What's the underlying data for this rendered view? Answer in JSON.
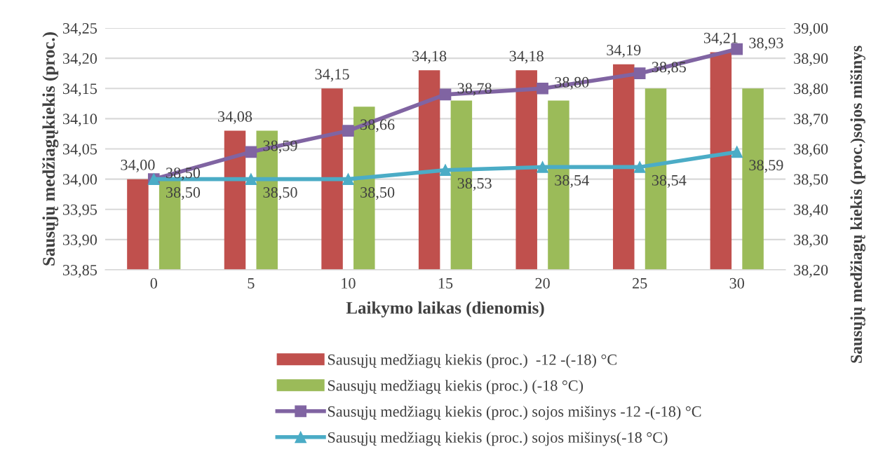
{
  "chart_data": {
    "type": "bar",
    "xlabel": "Laikymo laikas (dienomis)",
    "ylabel": "Sausųjų medžiagųkiekis (proc.)",
    "y2label": "Sausųjų medžiagų kiekis (proc.)sojos mišinys",
    "categories": [
      "0",
      "5",
      "10",
      "15",
      "20",
      "25",
      "30"
    ],
    "series": [
      {
        "name": "Sausųjų medžiagų kiekis (proc.)  -12 -(-18) °C",
        "color": "#c0504d",
        "values": [
          34.0,
          34.08,
          34.15,
          34.18,
          34.18,
          34.19,
          34.21
        ],
        "value_labels": [
          "34,00",
          "34,08",
          "34,15",
          "34,18",
          "34,18",
          "34,19",
          "34,21"
        ]
      },
      {
        "name": "Sausųjų medžiagų kiekis (proc.) (-18 °C)",
        "color": "#9bbb59",
        "values": [
          34.0,
          34.08,
          34.12,
          34.13,
          34.13,
          34.15,
          34.15
        ]
      },
      {
        "name": "Sausųjų medžiagų kiekis (proc.) sojos mišinys -12 -(-18) °C",
        "type": "line",
        "axis": "y2",
        "marker": "square",
        "color": "#8064a2",
        "values": [
          38.5,
          38.59,
          38.66,
          38.78,
          38.8,
          38.85,
          38.93
        ],
        "value_labels": [
          "38,50",
          "38,59",
          "38,66",
          "38,78",
          "38,80",
          "38,85",
          "38,93"
        ]
      },
      {
        "name": "Sausųjų medžiagų kiekis (proc.) sojos mišinys(-18 °C)",
        "type": "line",
        "axis": "y2",
        "marker": "triangle",
        "color": "#4bacc6",
        "values": [
          38.5,
          38.5,
          38.5,
          38.53,
          38.54,
          38.54,
          38.59
        ],
        "value_labels": [
          "38,50",
          "38,50",
          "38,50",
          "38,53",
          "38,54",
          "38,54",
          "38,59"
        ]
      }
    ],
    "ylim": [
      33.85,
      34.25
    ],
    "yticks": [
      {
        "value": 33.85,
        "label": "33,85"
      },
      {
        "value": 33.9,
        "label": "33,90"
      },
      {
        "value": 33.95,
        "label": "33,95"
      },
      {
        "value": 34.0,
        "label": "34,00"
      },
      {
        "value": 34.05,
        "label": "34,05"
      },
      {
        "value": 34.1,
        "label": "34,10"
      },
      {
        "value": 34.15,
        "label": "34,15"
      },
      {
        "value": 34.2,
        "label": "34,20"
      },
      {
        "value": 34.25,
        "label": "34,25"
      }
    ],
    "y2lim": [
      38.2,
      39.0
    ],
    "y2ticks": [
      {
        "value": 38.2,
        "label": "38,20"
      },
      {
        "value": 38.3,
        "label": "38,30"
      },
      {
        "value": 38.4,
        "label": "38,40"
      },
      {
        "value": 38.5,
        "label": "38,50"
      },
      {
        "value": 38.6,
        "label": "38,60"
      },
      {
        "value": 38.7,
        "label": "38,70"
      },
      {
        "value": 38.8,
        "label": "38,80"
      },
      {
        "value": 38.9,
        "label": "38,90"
      },
      {
        "value": 39.0,
        "label": "39,00"
      }
    ],
    "grid": "y",
    "legend": "bottom",
    "line_style": "solid"
  }
}
